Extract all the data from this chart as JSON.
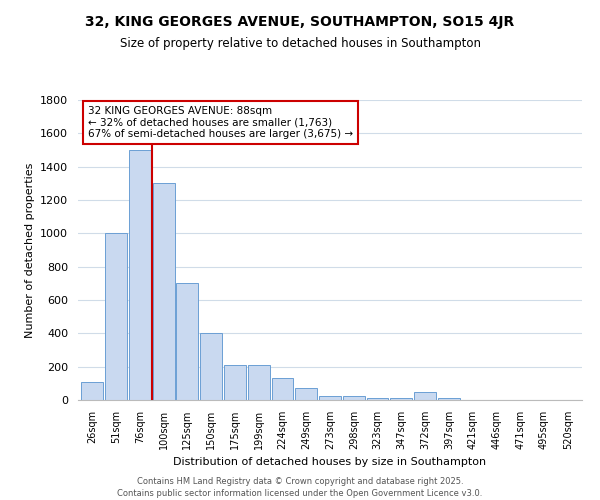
{
  "title": "32, KING GEORGES AVENUE, SOUTHAMPTON, SO15 4JR",
  "subtitle": "Size of property relative to detached houses in Southampton",
  "xlabel": "Distribution of detached houses by size in Southampton",
  "ylabel": "Number of detached properties",
  "bar_labels": [
    "26sqm",
    "51sqm",
    "76sqm",
    "100sqm",
    "125sqm",
    "150sqm",
    "175sqm",
    "199sqm",
    "224sqm",
    "249sqm",
    "273sqm",
    "298sqm",
    "323sqm",
    "347sqm",
    "372sqm",
    "397sqm",
    "421sqm",
    "446sqm",
    "471sqm",
    "495sqm",
    "520sqm"
  ],
  "bar_values": [
    110,
    1000,
    1500,
    1300,
    700,
    400,
    210,
    210,
    135,
    70,
    25,
    25,
    15,
    15,
    50,
    10,
    0,
    0,
    0,
    0,
    0
  ],
  "bar_color": "#c9d9f0",
  "bar_edge_color": "#6b9fd4",
  "vline_index": 2,
  "vline_color": "#cc0000",
  "ylim": [
    0,
    1800
  ],
  "yticks": [
    0,
    200,
    400,
    600,
    800,
    1000,
    1200,
    1400,
    1600,
    1800
  ],
  "annotation_line1": "32 KING GEORGES AVENUE: 88sqm",
  "annotation_line2": "← 32% of detached houses are smaller (1,763)",
  "annotation_line3": "67% of semi-detached houses are larger (3,675) →",
  "annotation_box_color": "#ffffff",
  "annotation_box_edge": "#cc0000",
  "footer_line1": "Contains HM Land Registry data © Crown copyright and database right 2025.",
  "footer_line2": "Contains public sector information licensed under the Open Government Licence v3.0.",
  "bg_color": "#ffffff",
  "grid_color": "#d0dce8"
}
